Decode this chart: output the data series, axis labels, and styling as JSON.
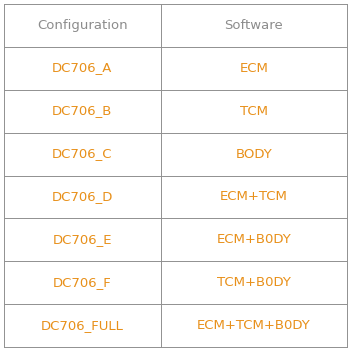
{
  "title_row": [
    "Configuration",
    "Software"
  ],
  "rows": [
    [
      "DC706_A",
      "ECM"
    ],
    [
      "DC706_B",
      "TCM"
    ],
    [
      "DC706_C",
      "BODY"
    ],
    [
      "DC706_D",
      "ECM+TCM"
    ],
    [
      "DC706_E",
      "ECM+B0DY"
    ],
    [
      "DC706_F",
      "TCM+B0DY"
    ],
    [
      "DC706_FULL",
      "ECM+TCM+B0DY"
    ]
  ],
  "header_color": "#8C8C8C",
  "cell_color": "#E8901A",
  "bg_color": "#FFFFFF",
  "border_color": "#909090",
  "font_size": 9.5,
  "header_font_size": 9.5,
  "fig_width": 3.5,
  "fig_height": 3.51,
  "dpi": 100
}
